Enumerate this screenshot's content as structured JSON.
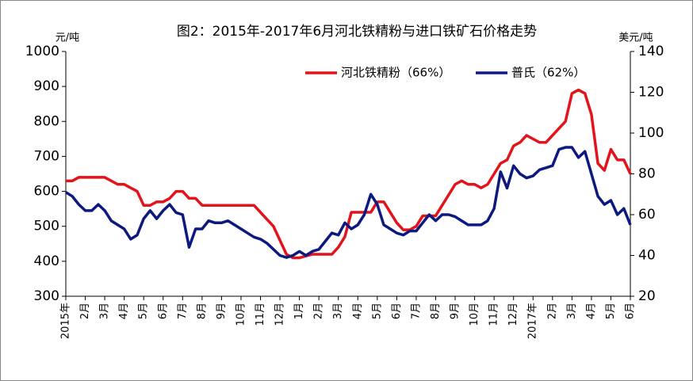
{
  "chart_data": {
    "type": "line",
    "title": "图2：2015年-2017年6月河北铁精粉与进口铁矿石价格走势",
    "y_label": "元/吨",
    "y2_label": "美元/吨",
    "categories": [
      "2015年",
      null,
      null,
      "2月",
      null,
      null,
      "3月",
      null,
      null,
      "4月",
      null,
      null,
      "5月",
      null,
      null,
      "6月",
      null,
      null,
      "7月",
      null,
      null,
      "8月",
      null,
      null,
      "9月",
      null,
      null,
      "10月",
      null,
      null,
      "11月",
      null,
      null,
      "12月",
      null,
      null,
      "1月",
      null,
      null,
      "2月",
      null,
      null,
      "3月",
      null,
      null,
      "4月",
      null,
      null,
      "5月",
      null,
      null,
      "6月",
      null,
      null,
      "7月",
      null,
      null,
      "8月",
      null,
      null,
      "9月",
      null,
      null,
      "10月",
      null,
      null,
      "11月",
      null,
      null,
      "12月",
      null,
      null,
      "2017年",
      null,
      null,
      "2月",
      null,
      null,
      "3月",
      null,
      null,
      "4月",
      null,
      null,
      "5月",
      null,
      null,
      "6月"
    ],
    "series": [
      {
        "name": "河北铁精粉（66%）",
        "color": "#e3131b",
        "axis": "y",
        "values": [
          630,
          630,
          640,
          640,
          640,
          640,
          640,
          630,
          620,
          620,
          610,
          600,
          560,
          560,
          570,
          570,
          580,
          600,
          600,
          580,
          580,
          560,
          560,
          560,
          560,
          560,
          560,
          560,
          560,
          560,
          540,
          520,
          500,
          460,
          420,
          410,
          410,
          415,
          420,
          420,
          420,
          420,
          440,
          470,
          540,
          540,
          540,
          540,
          570,
          570,
          540,
          510,
          490,
          490,
          500,
          530,
          530,
          530,
          560,
          590,
          620,
          630,
          620,
          620,
          610,
          620,
          650,
          680,
          690,
          730,
          740,
          760,
          750,
          740,
          740,
          760,
          780,
          800,
          880,
          890,
          880,
          820,
          680,
          660,
          720,
          690,
          690,
          650
        ]
      },
      {
        "name": "普氏（62%）",
        "color": "#0c1a80",
        "axis": "y2",
        "values": [
          71,
          69,
          65,
          62,
          62,
          65,
          62,
          57,
          55,
          53,
          48,
          50,
          58,
          62,
          58,
          62,
          65,
          61,
          60,
          44,
          53,
          53,
          57,
          56,
          56,
          57,
          55,
          53,
          51,
          49,
          48,
          46,
          43,
          40,
          39,
          40,
          42,
          40,
          42,
          43,
          47,
          51,
          50,
          56,
          53,
          55,
          60,
          70,
          65,
          55,
          53,
          51,
          50,
          52,
          52,
          56,
          60,
          57,
          60,
          60,
          59,
          57,
          55,
          55,
          55,
          57,
          63,
          81,
          73,
          84,
          80,
          78,
          79,
          82,
          83,
          84,
          92,
          93,
          93,
          88,
          91,
          80,
          69,
          65,
          67,
          60,
          63,
          55
        ]
      }
    ],
    "ylim": [
      300,
      1000
    ],
    "yticks": [
      300,
      400,
      500,
      600,
      700,
      800,
      900,
      1000
    ],
    "y2lim": [
      20,
      140
    ],
    "y2ticks": [
      20,
      40,
      60,
      80,
      100,
      120,
      140
    ],
    "legend": "top-right"
  }
}
